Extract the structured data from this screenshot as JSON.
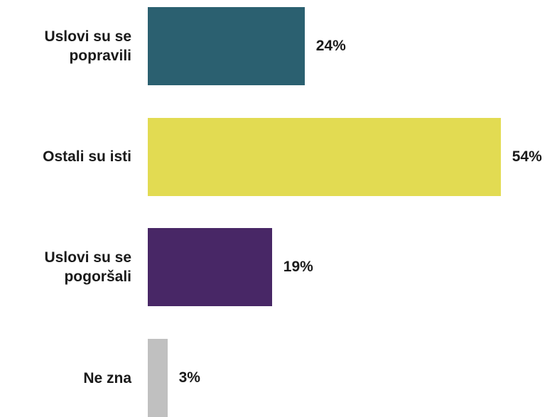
{
  "chart_data": {
    "type": "bar",
    "orientation": "horizontal",
    "categories": [
      "Uslovi su se popravili",
      "Ostali su isti",
      "Uslovi su se pogoršali",
      "Ne zna"
    ],
    "values": [
      24,
      54,
      19,
      3
    ],
    "value_labels": [
      "24%",
      "54%",
      "19%",
      "3%"
    ],
    "colors": [
      "#2b6070",
      "#e2db52",
      "#482766",
      "#c0c0c0"
    ]
  }
}
